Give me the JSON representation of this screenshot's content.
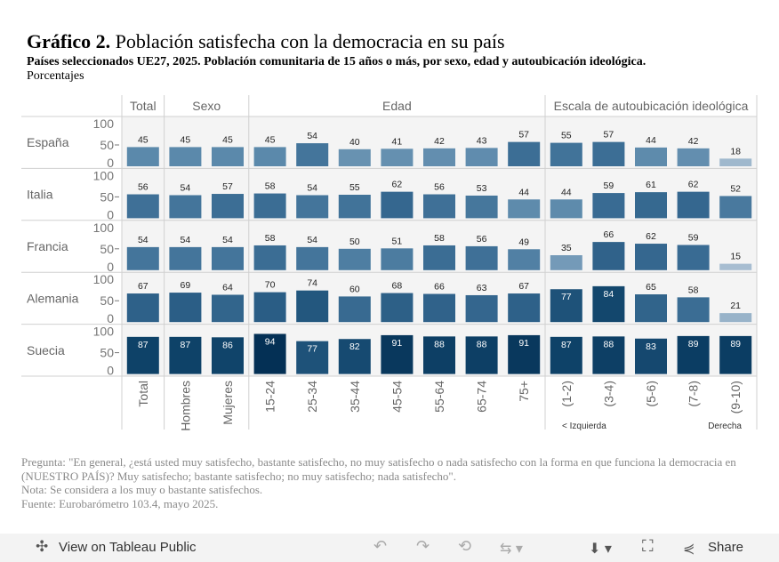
{
  "header": {
    "title_bold": "Gráfico 2.",
    "title_rest": "Población satisfecha con la democracia en su país",
    "subtitle_bold": "Países seleccionados UE27, 2025. Población comunitaria de 15 años o más, por sexo, edad y autoubicación ideológica.",
    "subtitle_rest": "Porcentajes"
  },
  "chart_data": {
    "type": "bar",
    "groups": [
      {
        "label": "Total",
        "count": 1
      },
      {
        "label": "Sexo",
        "count": 2
      },
      {
        "label": "Edad",
        "count": 7
      },
      {
        "label": "Escala de autoubicación ideológica",
        "count": 5
      }
    ],
    "categories": [
      "Total",
      "Hombres",
      "Mujeres",
      "15-24",
      "25-34",
      "35-44",
      "45-54",
      "55-64",
      "65-74",
      "75+",
      "(1-2)",
      "(3-4)",
      "(5-6)",
      "(7-8)",
      "(9-10)"
    ],
    "yticks": [
      "100",
      "50",
      "0"
    ],
    "ylim": [
      0,
      100
    ],
    "scale_left": "< Izquierda",
    "scale_right": "Derecha",
    "rows": [
      {
        "country": "España",
        "values": [
          45,
          45,
          45,
          45,
          54,
          40,
          41,
          42,
          43,
          57,
          55,
          57,
          44,
          42,
          18
        ]
      },
      {
        "country": "Italia",
        "values": [
          56,
          54,
          57,
          58,
          54,
          55,
          62,
          56,
          53,
          44,
          44,
          59,
          61,
          62,
          52
        ]
      },
      {
        "country": "Francia",
        "values": [
          54,
          54,
          54,
          58,
          54,
          50,
          51,
          58,
          56,
          49,
          35,
          66,
          62,
          59,
          15
        ]
      },
      {
        "country": "Alemania",
        "values": [
          67,
          69,
          64,
          70,
          74,
          60,
          68,
          66,
          63,
          67,
          77,
          84,
          65,
          58,
          21
        ]
      },
      {
        "country": "Suecia",
        "values": [
          87,
          87,
          86,
          94,
          77,
          82,
          91,
          88,
          88,
          91,
          87,
          88,
          83,
          89,
          89
        ]
      }
    ],
    "color_scale": [
      "#b3c7d9",
      "#5b89ab",
      "#3c6e95",
      "#0e4268",
      "#032d52"
    ]
  },
  "notes": [
    "Pregunta: \"En general, ¿está usted muy satisfecho, bastante satisfecho, no muy satisfecho o nada satisfecho con la forma en que funciona la democracia en (NUESTRO PAÍS)? Muy satisfecho; bastante satisfecho; no muy satisfecho; nada satisfecho\".",
    "Nota: Se considera a los muy o bastante satisfechos.",
    "Fuente: Eurobarómetro 103.4, mayo 2025."
  ],
  "toolbar": {
    "view_label": "View on Tableau Public",
    "share_label": "Share"
  }
}
